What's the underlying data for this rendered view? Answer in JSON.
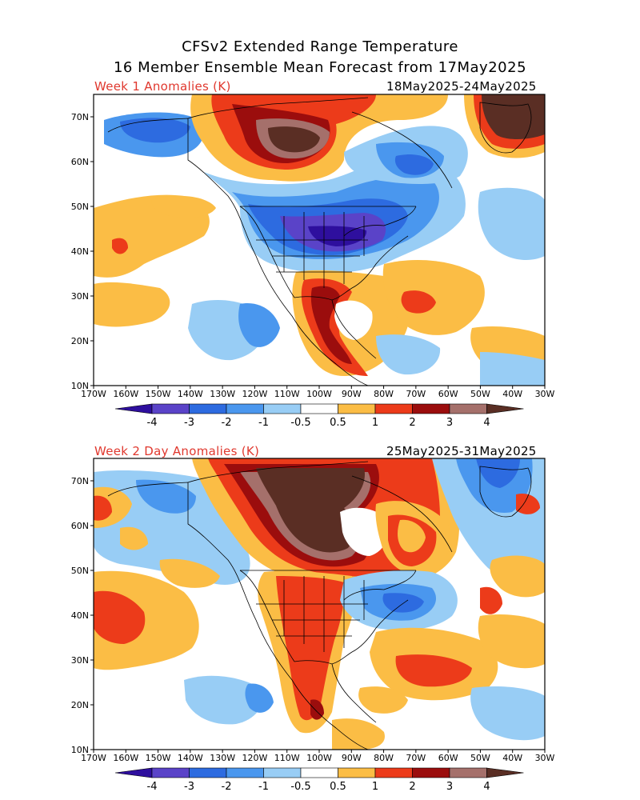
{
  "title": {
    "line1": "CFSv2 Extended Range Temperature",
    "line2": "16 Member Ensemble Mean Forecast from 17May2025"
  },
  "panels": [
    {
      "label": "Week 1 Anomalies (K)",
      "date_range": "18May2025-24May2025"
    },
    {
      "label": "Week 2 Day Anomalies (K)",
      "date_range": "25May2025-31May2025"
    }
  ],
  "axes": {
    "lon_labels": [
      "170W",
      "160W",
      "150W",
      "140W",
      "130W",
      "120W",
      "110W",
      "100W",
      "90W",
      "80W",
      "70W",
      "60W",
      "50W",
      "40W",
      "30W"
    ],
    "lat_labels": [
      "10N",
      "20N",
      "30N",
      "40N",
      "50N",
      "60N",
      "70N"
    ]
  },
  "colorbar": {
    "labels": [
      "-4",
      "-3",
      "-2",
      "-1",
      "-0.5",
      "0.5",
      "1",
      "2",
      "3",
      "4"
    ],
    "colors": [
      "#2e0f9e",
      "#5a43c8",
      "#2d6be0",
      "#4a97ee",
      "#98cdf5",
      "#ffffff",
      "#fbbd45",
      "#ec3b1a",
      "#9b0d0d",
      "#a5706b",
      "#5a2e24"
    ]
  },
  "palette": {
    "dark_blue": "#2e0f9e",
    "blue": "#5a43c8",
    "mid_blue": "#2d6be0",
    "light_blue": "#4a97ee",
    "pale_blue": "#98cdf5",
    "orange": "#fbbd45",
    "red": "#ec3b1a",
    "dark_red": "#9b0d0d",
    "rose": "#a5706b",
    "brown": "#5a2e24"
  }
}
